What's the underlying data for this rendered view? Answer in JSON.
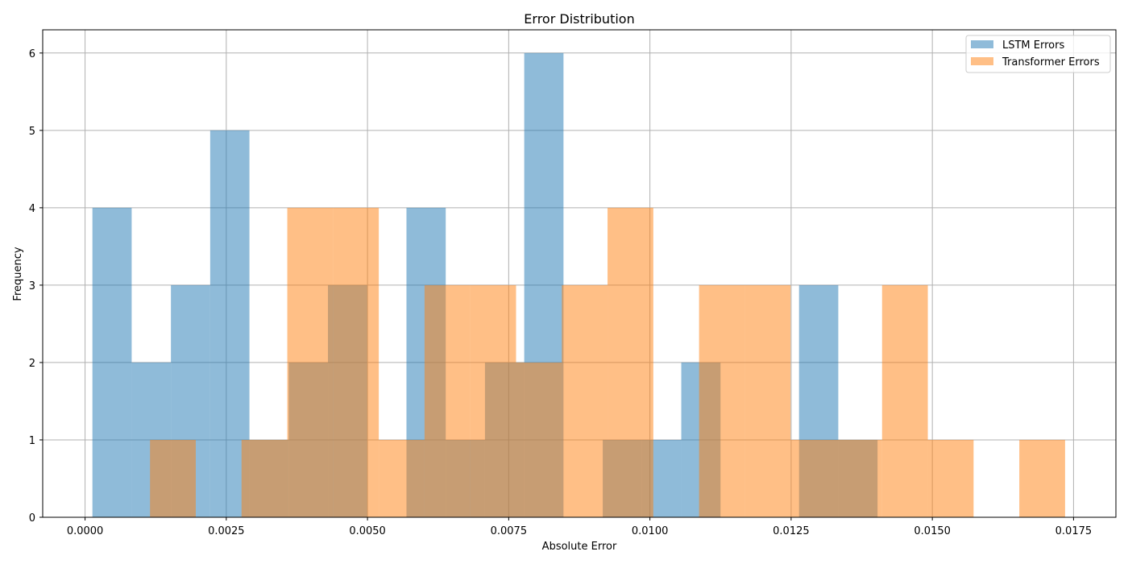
{
  "chart_data": {
    "type": "bar",
    "title": "Error Distribution",
    "xlabel": "Absolute Error",
    "ylabel": "Frequency",
    "xlim": [
      -0.00075,
      0.01825
    ],
    "ylim": [
      0,
      6.3
    ],
    "xticks": [
      0.0,
      0.0025,
      0.005,
      0.0075,
      0.01,
      0.0125,
      0.015,
      0.0175
    ],
    "xtick_labels": [
      "0.0000",
      "0.0025",
      "0.0050",
      "0.0075",
      "0.0100",
      "0.0125",
      "0.0150",
      "0.0175"
    ],
    "yticks": [
      0,
      1,
      2,
      3,
      4,
      5,
      6
    ],
    "ytick_labels": [
      "0",
      "1",
      "2",
      "3",
      "4",
      "5",
      "6"
    ],
    "grid": true,
    "legend_position": "top-right",
    "series": [
      {
        "name": "LSTM Errors",
        "color": "#1f77b4",
        "alpha": 0.5,
        "bins": [
          {
            "x0": 0.00013,
            "x1": 0.000825,
            "count": 4
          },
          {
            "x0": 0.000825,
            "x1": 0.00152,
            "count": 2
          },
          {
            "x0": 0.00152,
            "x1": 0.002215,
            "count": 3
          },
          {
            "x0": 0.002215,
            "x1": 0.00291,
            "count": 5
          },
          {
            "x0": 0.00291,
            "x1": 0.003605,
            "count": 1
          },
          {
            "x0": 0.003605,
            "x1": 0.0043,
            "count": 2
          },
          {
            "x0": 0.0043,
            "x1": 0.004995,
            "count": 3
          },
          {
            "x0": 0.004995,
            "x1": 0.00569,
            "count": 0
          },
          {
            "x0": 0.00569,
            "x1": 0.006385,
            "count": 4
          },
          {
            "x0": 0.006385,
            "x1": 0.00708,
            "count": 1
          },
          {
            "x0": 0.00708,
            "x1": 0.007775,
            "count": 2
          },
          {
            "x0": 0.007775,
            "x1": 0.00847,
            "count": 6
          },
          {
            "x0": 0.00847,
            "x1": 0.009165,
            "count": 0
          },
          {
            "x0": 0.009165,
            "x1": 0.00986,
            "count": 1
          },
          {
            "x0": 0.00986,
            "x1": 0.010555,
            "count": 1
          },
          {
            "x0": 0.010555,
            "x1": 0.01125,
            "count": 2
          },
          {
            "x0": 0.01125,
            "x1": 0.011945,
            "count": 0
          },
          {
            "x0": 0.011945,
            "x1": 0.01264,
            "count": 0
          },
          {
            "x0": 0.01264,
            "x1": 0.013335,
            "count": 3
          },
          {
            "x0": 0.013335,
            "x1": 0.01403,
            "count": 1
          }
        ]
      },
      {
        "name": "Transformer Errors",
        "color": "#ff7f0e",
        "alpha": 0.5,
        "bins": [
          {
            "x0": 0.00115,
            "x1": 0.00196,
            "count": 1
          },
          {
            "x0": 0.00196,
            "x1": 0.00277,
            "count": 0
          },
          {
            "x0": 0.00277,
            "x1": 0.00358,
            "count": 1
          },
          {
            "x0": 0.00358,
            "x1": 0.00439,
            "count": 4
          },
          {
            "x0": 0.00439,
            "x1": 0.0052,
            "count": 4
          },
          {
            "x0": 0.0052,
            "x1": 0.00601,
            "count": 1
          },
          {
            "x0": 0.00601,
            "x1": 0.00682,
            "count": 3
          },
          {
            "x0": 0.00682,
            "x1": 0.00763,
            "count": 3
          },
          {
            "x0": 0.00763,
            "x1": 0.00844,
            "count": 2
          },
          {
            "x0": 0.00844,
            "x1": 0.00925,
            "count": 3
          },
          {
            "x0": 0.00925,
            "x1": 0.01006,
            "count": 4
          },
          {
            "x0": 0.01006,
            "x1": 0.01087,
            "count": 0
          },
          {
            "x0": 0.01087,
            "x1": 0.01168,
            "count": 3
          },
          {
            "x0": 0.01168,
            "x1": 0.01249,
            "count": 3
          },
          {
            "x0": 0.01249,
            "x1": 0.0133,
            "count": 1
          },
          {
            "x0": 0.0133,
            "x1": 0.01411,
            "count": 1
          },
          {
            "x0": 0.01411,
            "x1": 0.01492,
            "count": 3
          },
          {
            "x0": 0.01492,
            "x1": 0.01573,
            "count": 1
          },
          {
            "x0": 0.01573,
            "x1": 0.01654,
            "count": 0
          },
          {
            "x0": 0.01654,
            "x1": 0.01735,
            "count": 1
          }
        ]
      }
    ]
  }
}
